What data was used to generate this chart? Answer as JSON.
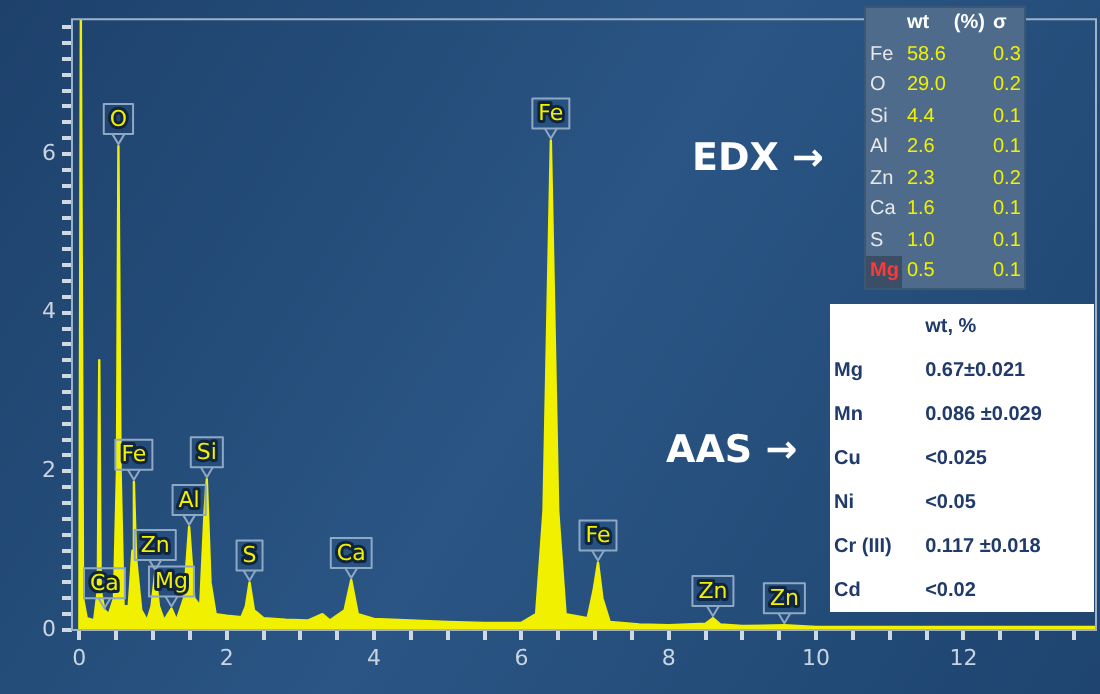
{
  "chart_data": {
    "type": "area",
    "x": [
      0,
      0.02,
      0.05,
      0.1,
      0.2,
      0.25,
      0.27,
      0.29,
      0.34,
      0.4,
      0.47,
      0.51,
      0.53,
      0.56,
      0.6,
      0.67,
      0.72,
      0.74,
      0.77,
      0.84,
      0.92,
      0.98,
      1.03,
      1.08,
      1.15,
      1.25,
      1.32,
      1.42,
      1.49,
      1.56,
      1.64,
      1.7,
      1.73,
      1.78,
      1.85,
      2.0,
      2.2,
      2.26,
      2.31,
      2.37,
      2.5,
      2.8,
      3.1,
      3.3,
      3.4,
      3.6,
      3.69,
      3.78,
      4.0,
      4.5,
      5.0,
      5.5,
      6.0,
      6.2,
      6.3,
      6.4,
      6.5,
      6.6,
      6.9,
      6.98,
      7.04,
      7.1,
      7.2,
      7.6,
      8.0,
      8.5,
      8.6,
      8.7,
      9.0,
      9.57,
      10,
      11,
      12,
      13,
      13.8
    ],
    "series": [
      {
        "color": "#f0f000",
        "values": [
          0,
          7.7,
          0.4,
          0.15,
          0.12,
          0.5,
          3.4,
          0.5,
          0.25,
          0.2,
          0.4,
          2.0,
          6.1,
          2.0,
          0.3,
          0.3,
          1.0,
          1.87,
          0.9,
          0.25,
          0.12,
          0.3,
          0.73,
          0.3,
          0.12,
          0.27,
          0.12,
          0.4,
          1.3,
          0.4,
          0.3,
          1.5,
          1.9,
          0.6,
          0.2,
          0.18,
          0.16,
          0.3,
          0.6,
          0.25,
          0.15,
          0.13,
          0.12,
          0.2,
          0.12,
          0.25,
          0.63,
          0.2,
          0.14,
          0.12,
          0.1,
          0.09,
          0.09,
          0.2,
          1.5,
          6.17,
          1.5,
          0.2,
          0.15,
          0.5,
          0.85,
          0.4,
          0.1,
          0.07,
          0.06,
          0.08,
          0.15,
          0.07,
          0.05,
          0.06,
          0.04,
          0.04,
          0.04,
          0.04,
          0.04
        ]
      }
    ],
    "xlim": [
      -0.1,
      13.8
    ],
    "xticks": [
      0,
      {
        "value": 0.5,
        "label": null
      },
      {
        "value": 1,
        "label": null
      },
      {
        "value": 1.5,
        "label": null
      },
      2,
      {
        "value": 2.5,
        "label": null
      },
      {
        "value": 3,
        "label": null
      },
      {
        "value": 3.5,
        "label": null
      },
      4,
      {
        "value": 4.5,
        "label": null
      },
      {
        "value": 5,
        "label": null
      },
      {
        "value": 5.5,
        "label": null
      },
      6,
      {
        "value": 6.5,
        "label": null
      },
      {
        "value": 7,
        "label": null
      },
      {
        "value": 7.5,
        "label": null
      },
      8,
      {
        "value": 8.5,
        "label": null
      },
      {
        "value": 9,
        "label": null
      },
      {
        "value": 9.5,
        "label": null
      },
      10,
      {
        "value": 10.5,
        "label": null
      },
      {
        "value": 11,
        "label": null
      },
      {
        "value": 11.5,
        "label": null
      },
      12,
      {
        "value": 12.5,
        "label": null
      },
      {
        "value": 13,
        "label": null
      },
      {
        "value": 13.5,
        "label": null
      }
    ],
    "ylim": [
      0,
      7.7
    ],
    "yticks": [
      0,
      {
        "value": 0.2,
        "label": null
      },
      {
        "value": 0.4,
        "label": null
      },
      {
        "value": 0.6,
        "label": null
      },
      {
        "value": 0.8,
        "label": null
      },
      {
        "value": 1,
        "label": null
      },
      {
        "value": 1.2,
        "label": null
      },
      {
        "value": 1.4,
        "label": null
      },
      {
        "value": 1.6,
        "label": null
      },
      {
        "value": 1.8,
        "label": null
      },
      2,
      {
        "value": 2.2,
        "label": null
      },
      {
        "value": 2.4,
        "label": null
      },
      {
        "value": 2.6,
        "label": null
      },
      {
        "value": 2.8,
        "label": null
      },
      {
        "value": 3,
        "label": null
      },
      {
        "value": 3.2,
        "label": null
      },
      {
        "value": 3.4,
        "label": null
      },
      {
        "value": 3.6,
        "label": null
      },
      {
        "value": 3.8,
        "label": null
      },
      4,
      {
        "value": 4.2,
        "label": null
      },
      {
        "value": 4.4,
        "label": null
      },
      {
        "value": 4.6,
        "label": null
      },
      {
        "value": 4.8,
        "label": null
      },
      {
        "value": 5,
        "label": null
      },
      {
        "value": 5.2,
        "label": null
      },
      {
        "value": 5.4,
        "label": null
      },
      {
        "value": 5.6,
        "label": null
      },
      {
        "value": 5.8,
        "label": null
      },
      6,
      {
        "value": 6.2,
        "label": null
      },
      {
        "value": 6.4,
        "label": null
      },
      {
        "value": 6.6,
        "label": null
      },
      {
        "value": 6.8,
        "label": null
      },
      {
        "value": 7,
        "label": null
      },
      {
        "value": 7.2,
        "label": null
      },
      {
        "value": 7.4,
        "label": null
      },
      {
        "value": 7.6,
        "label": null
      }
    ],
    "grid": false,
    "legend": false,
    "annotations": [
      {
        "text": "Ca",
        "x": 0.34,
        "y": 0.25
      },
      {
        "text": "O",
        "x": 0.53,
        "y": 6.1
      },
      {
        "text": "Fe",
        "x": 0.74,
        "y": 1.87
      },
      {
        "text": "Zn",
        "x": 1.03,
        "y": 0.73
      },
      {
        "text": "Mg",
        "x": 1.25,
        "y": 0.27
      },
      {
        "text": "Al",
        "x": 1.49,
        "y": 1.3
      },
      {
        "text": "Si",
        "x": 1.73,
        "y": 1.9
      },
      {
        "text": "S",
        "x": 2.31,
        "y": 0.6
      },
      {
        "text": "Ca",
        "x": 3.69,
        "y": 0.63
      },
      {
        "text": "Fe",
        "x": 6.4,
        "y": 6.17
      },
      {
        "text": "Fe",
        "x": 7.04,
        "y": 0.85
      },
      {
        "text": "Zn",
        "x": 8.6,
        "y": 0.15
      },
      {
        "text": "Zn",
        "x": 9.57,
        "y": 0.06
      },
      "EDX →",
      "\twt\t(%)\tσ",
      "Fe\t58.6\t\t0.3",
      "O\t29.0\t\t0.2",
      "Si\t4.4\t\t0.1",
      "Al\t2.6\t\t0.1",
      "Zn\t2.3\t\t0.2",
      "Ca\t1.6\t\t0.1",
      "S\t1.0\t\t0.1",
      "Mg\t0.5\t\t0.1",
      "AAS →",
      "\twt, %",
      "Mg\t0.67±0.021",
      "Mn\t0.086 ±0.029",
      "Cu\t<0.025",
      "Ni\t<0.05",
      "Cr (III)\t0.117 ±0.018",
      "Cd\t<0.02"
    ]
  }
}
